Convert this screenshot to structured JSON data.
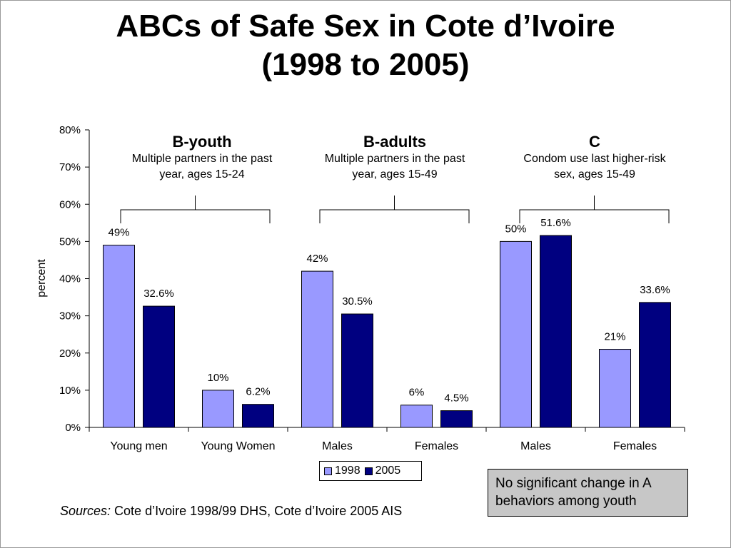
{
  "title_lines": [
    "ABCs of Safe Sex in Cote d’Ivoire",
    "(1998 to 2005)"
  ],
  "groups": [
    {
      "title": "B-youth",
      "subtitle_lines": [
        "Multiple partners in the past",
        "year, ages 15-24"
      ]
    },
    {
      "title": "B-adults",
      "subtitle_lines": [
        "Multiple partners in the past",
        "year, ages 15-49"
      ]
    },
    {
      "title": "C",
      "subtitle_lines": [
        "Condom use last higher-risk",
        "sex, ages 15-49"
      ]
    }
  ],
  "legend": {
    "items": [
      "1998",
      "2005"
    ]
  },
  "note": "No significant change in A behaviors among youth",
  "sources": {
    "label": "Sources:",
    "text": " Cote d’Ivoire 1998/99 DHS, Cote d’Ivoire 2005 AIS"
  },
  "colors": {
    "series_1998": "#9999ff",
    "series_2005": "#000080",
    "note_bg": "#c7c7c7"
  },
  "chart_data": {
    "type": "bar",
    "ylabel": "percent",
    "ylim": [
      0,
      80
    ],
    "y_ticks": [
      "0%",
      "10%",
      "20%",
      "30%",
      "40%",
      "50%",
      "60%",
      "70%",
      "80%"
    ],
    "categories": [
      "Young men",
      "Young Women",
      "Males",
      "Females",
      "Males",
      "Females"
    ],
    "series": [
      {
        "name": "1998",
        "values": [
          49,
          10,
          42,
          6,
          50,
          21
        ],
        "labels": [
          "49%",
          "10%",
          "42%",
          "6%",
          "50%",
          "21%"
        ]
      },
      {
        "name": "2005",
        "values": [
          32.6,
          6.2,
          30.5,
          4.5,
          51.6,
          33.6
        ],
        "labels": [
          "32.6%",
          "6.2%",
          "30.5%",
          "4.5%",
          "51.6%",
          "33.6%"
        ]
      }
    ],
    "grid": false,
    "legend_position": "bottom"
  }
}
